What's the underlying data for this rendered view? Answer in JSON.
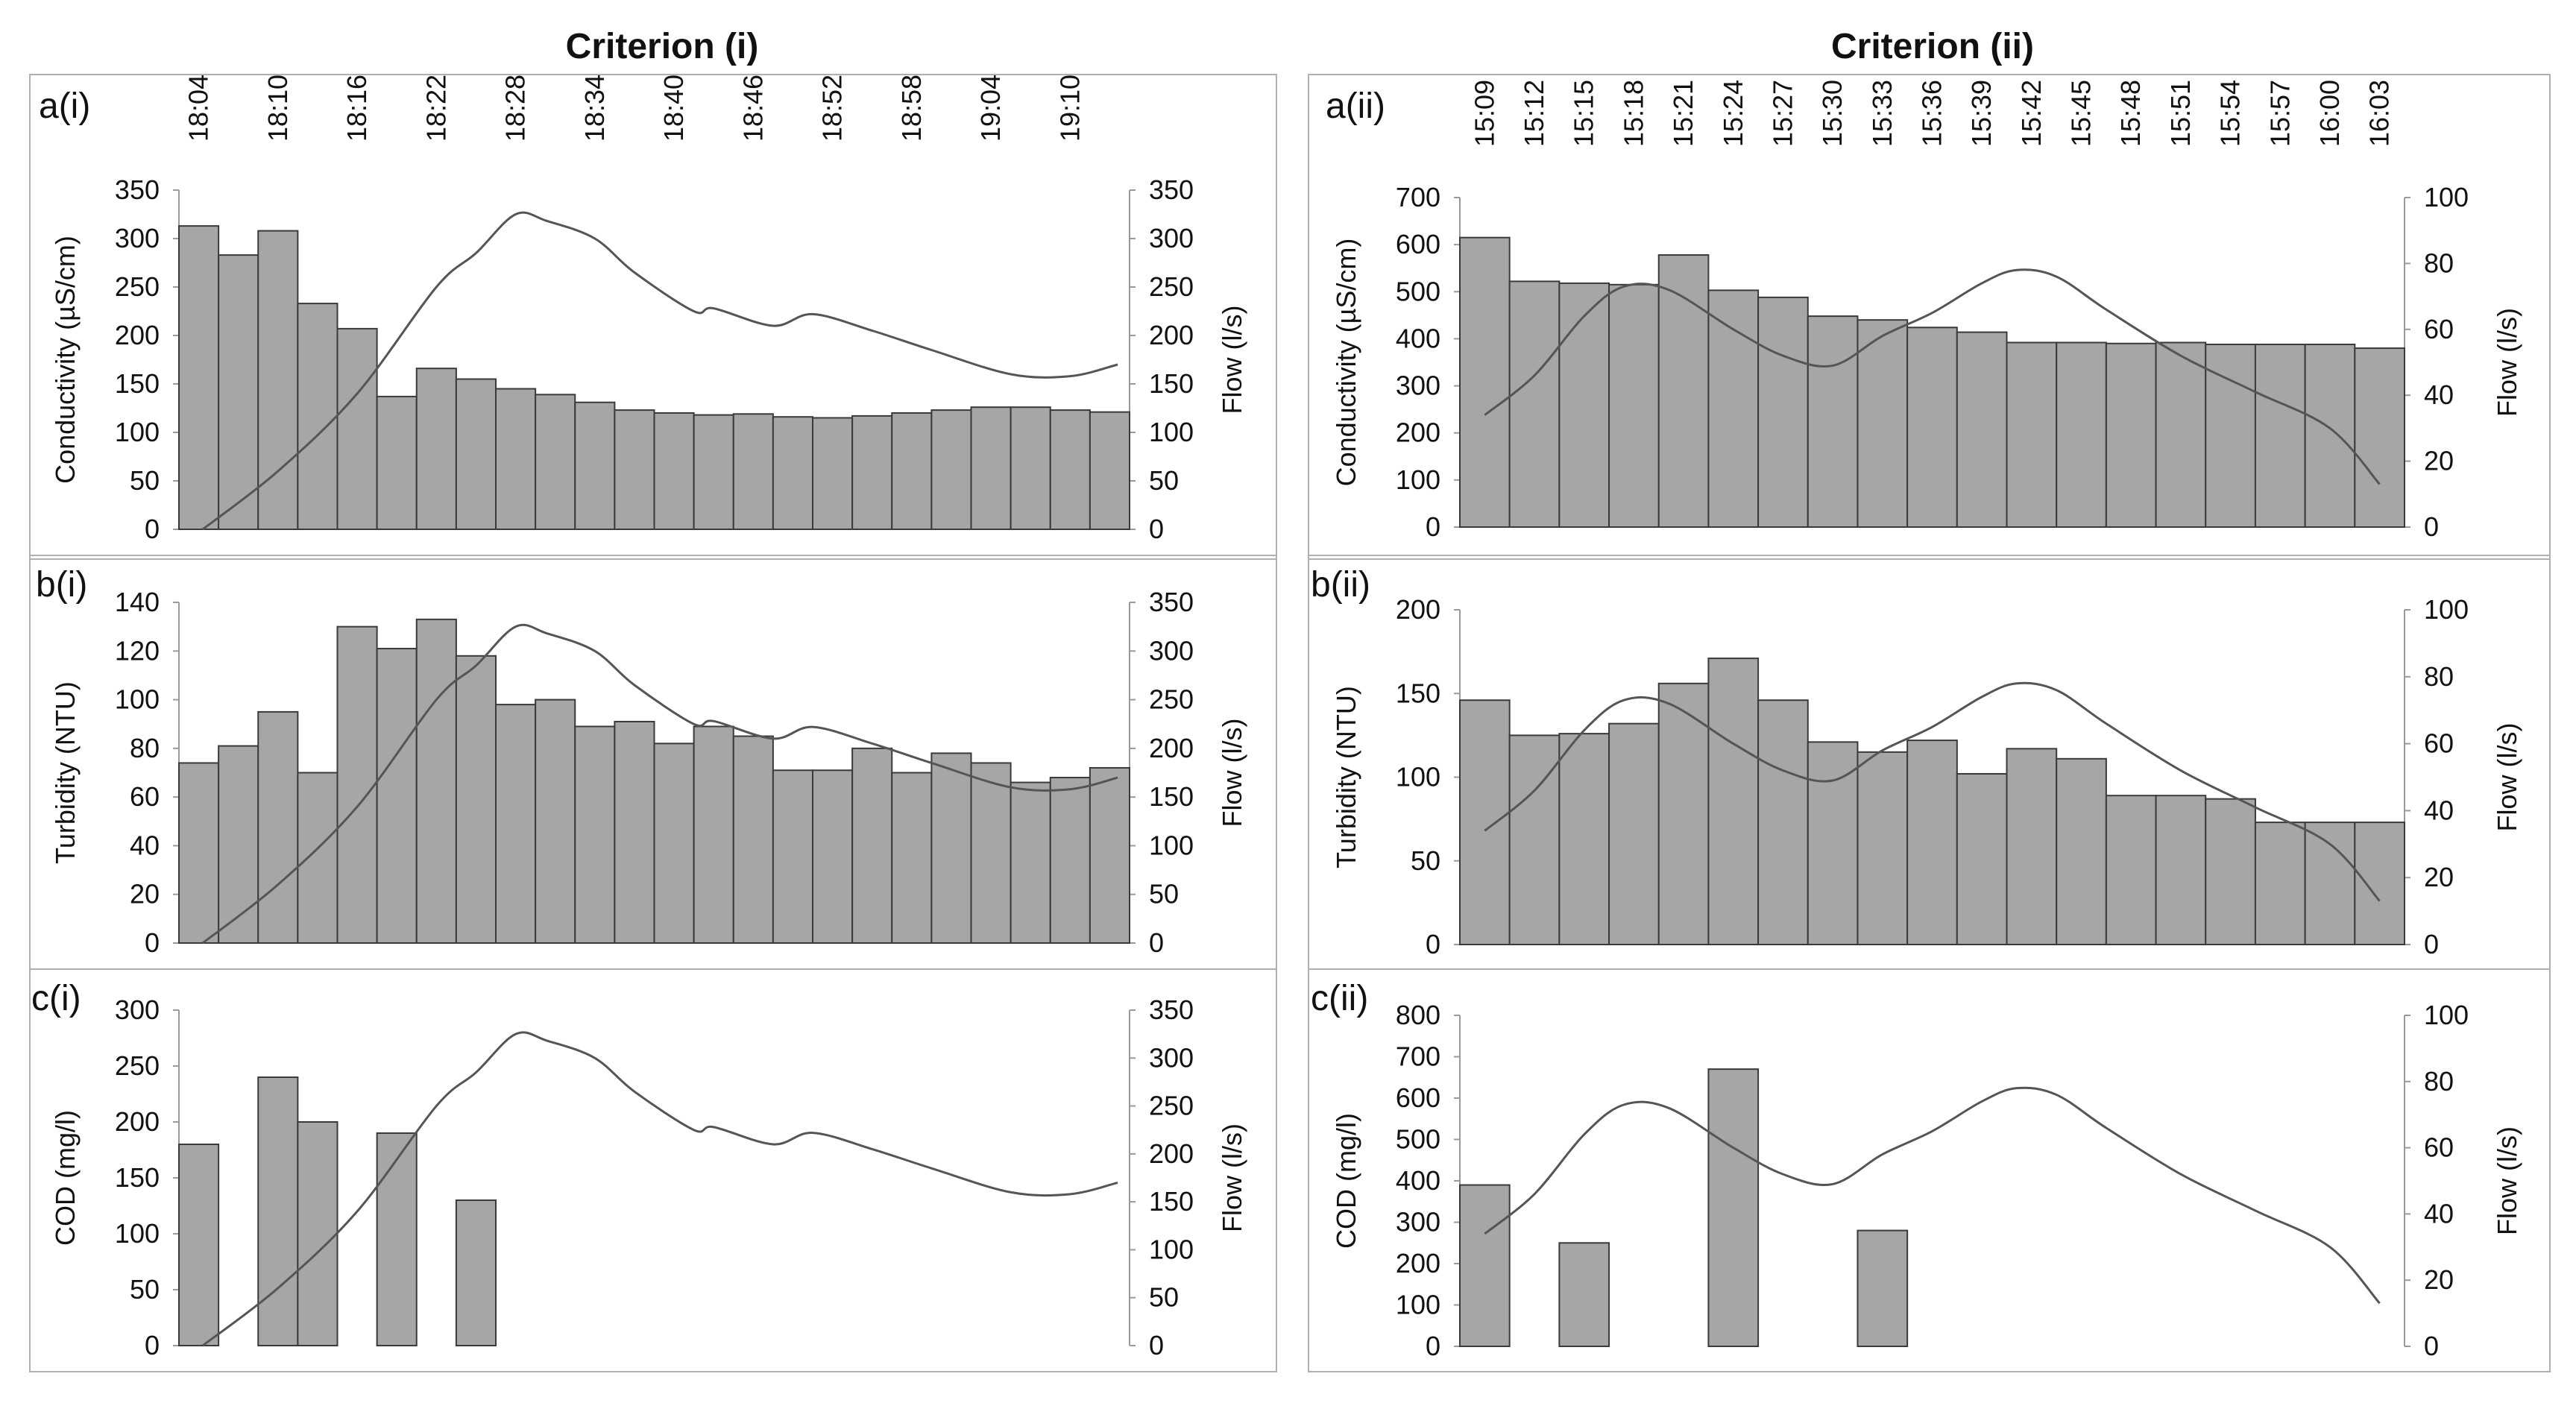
{
  "colors": {
    "bar_fill": "#a6a6a6",
    "bar_stroke": "#3a3a3a",
    "flow_line": "#555555",
    "frame": "#b0b0b0"
  },
  "headers": {
    "left": "Criterion (i)",
    "right": "Criterion (ii)"
  },
  "time_labels": {
    "i": [
      "18:04",
      "18:10",
      "18:16",
      "18:22",
      "18:28",
      "18:34",
      "18:40",
      "18:46",
      "18:52",
      "18:58",
      "19:04",
      "19:10"
    ],
    "ii": [
      "15:09",
      "15:12",
      "15:15",
      "15:18",
      "15:21",
      "15:24",
      "15:27",
      "15:30",
      "15:33",
      "15:36",
      "15:39",
      "15:42",
      "15:45",
      "15:48",
      "15:51",
      "15:54",
      "15:57",
      "16:00",
      "16:03"
    ]
  },
  "chart_data": [
    {
      "id": "a_i",
      "panel_label": "a(i)",
      "type": "bar",
      "column": "i",
      "ylabel": "Conductivity (µS/cm)",
      "ylim": [
        0,
        350
      ],
      "yticks": [
        0,
        50,
        100,
        150,
        200,
        250,
        300,
        350
      ],
      "y2label": "Flow (l/s)",
      "y2lim": [
        0,
        350
      ],
      "y2ticks": [
        0,
        50,
        100,
        150,
        200,
        250,
        300,
        350
      ],
      "n_slots": 24,
      "series": [
        {
          "kind": "bar",
          "slots": [
            0,
            1,
            2,
            3,
            4,
            5,
            6,
            7,
            8,
            9,
            10,
            11,
            12,
            13,
            14,
            15,
            16,
            17,
            18,
            19,
            20,
            21,
            22,
            23
          ],
          "values": [
            313,
            283,
            308,
            233,
            207,
            137,
            166,
            155,
            145,
            139,
            131,
            123,
            120,
            118,
            119,
            116,
            115,
            117,
            120,
            123,
            126,
            126,
            123,
            121
          ]
        },
        {
          "kind": "line",
          "axis": "right",
          "points": [
            [
              0.6,
              0
            ],
            [
              2.5,
              60
            ],
            [
              4.5,
              140
            ],
            [
              6.5,
              250
            ],
            [
              7.5,
              285
            ],
            [
              8.5,
              325
            ],
            [
              9.3,
              318
            ],
            [
              10.5,
              300
            ],
            [
              11.5,
              265
            ],
            [
              13,
              225
            ],
            [
              13.5,
              228
            ],
            [
              15,
              210
            ],
            [
              16,
              222
            ],
            [
              17.5,
              205
            ],
            [
              19,
              185
            ],
            [
              21,
              160
            ],
            [
              22.5,
              158
            ],
            [
              23.7,
              170
            ]
          ]
        }
      ]
    },
    {
      "id": "b_i",
      "panel_label": "b(i)",
      "type": "bar",
      "column": "i",
      "ylabel": "Turbidity (NTU)",
      "ylim": [
        0,
        140
      ],
      "yticks": [
        0,
        20,
        40,
        60,
        80,
        100,
        120,
        140
      ],
      "y2label": "Flow (l/s)",
      "y2lim": [
        0,
        350
      ],
      "y2ticks": [
        0,
        50,
        100,
        150,
        200,
        250,
        300,
        350
      ],
      "n_slots": 24,
      "series": [
        {
          "kind": "bar",
          "slots": [
            0,
            1,
            2,
            3,
            4,
            5,
            6,
            7,
            8,
            9,
            10,
            11,
            12,
            13,
            14,
            15,
            16,
            17,
            18,
            19,
            20,
            21,
            22,
            23
          ],
          "values": [
            74,
            81,
            95,
            70,
            130,
            121,
            133,
            118,
            98,
            100,
            89,
            91,
            82,
            89,
            85,
            71,
            71,
            80,
            70,
            78,
            74,
            66,
            68,
            72
          ]
        },
        {
          "kind": "line",
          "axis": "right",
          "points": [
            [
              0.6,
              0
            ],
            [
              2.5,
              60
            ],
            [
              4.5,
              140
            ],
            [
              6.5,
              250
            ],
            [
              7.5,
              285
            ],
            [
              8.5,
              325
            ],
            [
              9.3,
              318
            ],
            [
              10.5,
              300
            ],
            [
              11.5,
              265
            ],
            [
              13,
              225
            ],
            [
              13.5,
              228
            ],
            [
              15,
              210
            ],
            [
              16,
              222
            ],
            [
              17.5,
              205
            ],
            [
              19,
              185
            ],
            [
              21,
              160
            ],
            [
              22.5,
              158
            ],
            [
              23.7,
              170
            ]
          ]
        }
      ]
    },
    {
      "id": "c_i",
      "panel_label": "c(i)",
      "type": "bar",
      "column": "i",
      "ylabel": "COD (mg/l)",
      "ylim": [
        0,
        300
      ],
      "yticks": [
        0,
        50,
        100,
        150,
        200,
        250,
        300
      ],
      "y2label": "Flow (l/s)",
      "y2lim": [
        0,
        350
      ],
      "y2ticks": [
        0,
        50,
        100,
        150,
        200,
        250,
        300,
        350
      ],
      "n_slots": 24,
      "series": [
        {
          "kind": "bar",
          "slots": [
            0,
            2,
            3,
            5,
            7
          ],
          "values": [
            180,
            240,
            200,
            190,
            130
          ]
        },
        {
          "kind": "line",
          "axis": "right",
          "points": [
            [
              0.6,
              0
            ],
            [
              2.5,
              60
            ],
            [
              4.5,
              140
            ],
            [
              6.5,
              250
            ],
            [
              7.5,
              285
            ],
            [
              8.5,
              325
            ],
            [
              9.3,
              318
            ],
            [
              10.5,
              300
            ],
            [
              11.5,
              265
            ],
            [
              13,
              225
            ],
            [
              13.5,
              228
            ],
            [
              15,
              210
            ],
            [
              16,
              222
            ],
            [
              17.5,
              205
            ],
            [
              19,
              185
            ],
            [
              21,
              160
            ],
            [
              22.5,
              158
            ],
            [
              23.7,
              170
            ]
          ]
        }
      ]
    },
    {
      "id": "a_ii",
      "panel_label": "a(ii)",
      "type": "bar",
      "column": "ii",
      "ylabel": "Conductivity (µS/cm)",
      "ylim": [
        0,
        700
      ],
      "yticks": [
        0,
        100,
        200,
        300,
        400,
        500,
        600,
        700
      ],
      "y2label": "Flow (l/s)",
      "y2lim": [
        0,
        100
      ],
      "y2ticks": [
        0,
        20,
        40,
        60,
        80,
        100
      ],
      "n_slots": 19,
      "series": [
        {
          "kind": "bar",
          "slots": [
            0,
            1,
            2,
            3,
            4,
            5,
            6,
            7,
            8,
            9,
            10,
            11,
            12,
            13,
            14,
            15,
            16,
            17,
            18
          ],
          "values": [
            615,
            522,
            518,
            515,
            578,
            503,
            488,
            448,
            440,
            424,
            414,
            392,
            392,
            390,
            392,
            388,
            388,
            388,
            380
          ]
        },
        {
          "kind": "line",
          "axis": "right",
          "points": [
            [
              0.5,
              34
            ],
            [
              1.5,
              46
            ],
            [
              2.5,
              64
            ],
            [
              3.3,
              73
            ],
            [
              4.2,
              72
            ],
            [
              5.5,
              60
            ],
            [
              6.5,
              52
            ],
            [
              7.5,
              49
            ],
            [
              8.5,
              58
            ],
            [
              9.5,
              65
            ],
            [
              10.5,
              74
            ],
            [
              11.2,
              78
            ],
            [
              12,
              76
            ],
            [
              13,
              66
            ],
            [
              14.5,
              52
            ],
            [
              16,
              41
            ],
            [
              17.5,
              30
            ],
            [
              18.5,
              13
            ]
          ]
        }
      ]
    },
    {
      "id": "b_ii",
      "panel_label": "b(ii)",
      "type": "bar",
      "column": "ii",
      "ylabel": "Turbidity (NTU)",
      "ylim": [
        0,
        200
      ],
      "yticks": [
        0,
        50,
        100,
        150,
        200
      ],
      "y2label": "Flow (l/s)",
      "y2lim": [
        0,
        100
      ],
      "y2ticks": [
        0,
        20,
        40,
        60,
        80,
        100
      ],
      "n_slots": 19,
      "series": [
        {
          "kind": "bar",
          "slots": [
            0,
            1,
            2,
            3,
            4,
            5,
            6,
            7,
            8,
            9,
            10,
            11,
            12,
            13,
            14,
            15,
            16,
            17,
            18
          ],
          "values": [
            146,
            125,
            126,
            132,
            156,
            171,
            146,
            121,
            115,
            122,
            102,
            117,
            111,
            89,
            89,
            87,
            73,
            73,
            73
          ]
        },
        {
          "kind": "line",
          "axis": "right",
          "points": [
            [
              0.5,
              34
            ],
            [
              1.5,
              46
            ],
            [
              2.5,
              64
            ],
            [
              3.3,
              73
            ],
            [
              4.2,
              72
            ],
            [
              5.5,
              60
            ],
            [
              6.5,
              52
            ],
            [
              7.5,
              49
            ],
            [
              8.5,
              58
            ],
            [
              9.5,
              65
            ],
            [
              10.5,
              74
            ],
            [
              11.2,
              78
            ],
            [
              12,
              76
            ],
            [
              13,
              66
            ],
            [
              14.5,
              52
            ],
            [
              16,
              41
            ],
            [
              17.5,
              30
            ],
            [
              18.5,
              13
            ]
          ]
        }
      ]
    },
    {
      "id": "c_ii",
      "panel_label": "c(ii)",
      "type": "bar",
      "column": "ii",
      "ylabel": "COD (mg/l)",
      "ylim": [
        0,
        800
      ],
      "yticks": [
        0,
        100,
        200,
        300,
        400,
        500,
        600,
        700,
        800
      ],
      "y2label": "Flow (l/s)",
      "y2lim": [
        0,
        100
      ],
      "y2ticks": [
        0,
        20,
        40,
        60,
        80,
        100
      ],
      "n_slots": 19,
      "series": [
        {
          "kind": "bar",
          "slots": [
            0,
            2,
            5,
            8
          ],
          "values": [
            390,
            250,
            670,
            280
          ]
        },
        {
          "kind": "line",
          "axis": "right",
          "points": [
            [
              0.5,
              34
            ],
            [
              1.5,
              46
            ],
            [
              2.5,
              64
            ],
            [
              3.3,
              73
            ],
            [
              4.2,
              72
            ],
            [
              5.5,
              60
            ],
            [
              6.5,
              52
            ],
            [
              7.5,
              49
            ],
            [
              8.5,
              58
            ],
            [
              9.5,
              65
            ],
            [
              10.5,
              74
            ],
            [
              11.2,
              78
            ],
            [
              12,
              76
            ],
            [
              13,
              66
            ],
            [
              14.5,
              52
            ],
            [
              16,
              41
            ],
            [
              17.5,
              30
            ],
            [
              18.5,
              13
            ]
          ]
        }
      ]
    }
  ]
}
